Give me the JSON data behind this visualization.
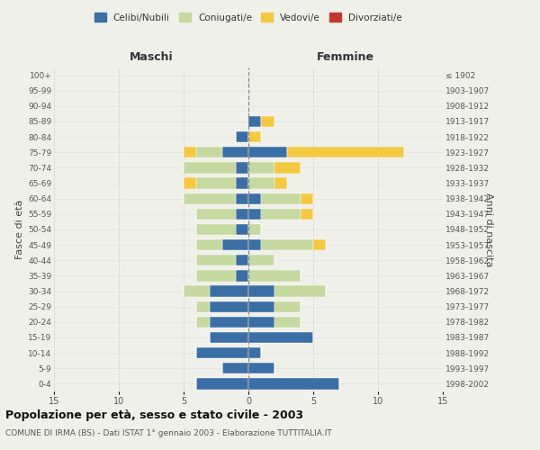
{
  "age_groups": [
    "0-4",
    "5-9",
    "10-14",
    "15-19",
    "20-24",
    "25-29",
    "30-34",
    "35-39",
    "40-44",
    "45-49",
    "50-54",
    "55-59",
    "60-64",
    "65-69",
    "70-74",
    "75-79",
    "80-84",
    "85-89",
    "90-94",
    "95-99",
    "100+"
  ],
  "birth_years": [
    "1998-2002",
    "1993-1997",
    "1988-1992",
    "1983-1987",
    "1978-1982",
    "1973-1977",
    "1968-1972",
    "1963-1967",
    "1958-1962",
    "1953-1957",
    "1948-1952",
    "1943-1947",
    "1938-1942",
    "1933-1937",
    "1928-1932",
    "1923-1927",
    "1918-1922",
    "1913-1917",
    "1908-1912",
    "1903-1907",
    "≤ 1902"
  ],
  "maschi": {
    "celibi": [
      4,
      2,
      4,
      3,
      3,
      3,
      3,
      1,
      1,
      2,
      1,
      1,
      1,
      1,
      1,
      2,
      1,
      0,
      0,
      0,
      0
    ],
    "coniugati": [
      0,
      0,
      0,
      0,
      1,
      1,
      2,
      3,
      3,
      2,
      3,
      3,
      4,
      3,
      4,
      2,
      0,
      0,
      0,
      0,
      0
    ],
    "vedovi": [
      0,
      0,
      0,
      0,
      0,
      0,
      0,
      0,
      0,
      0,
      0,
      0,
      0,
      1,
      0,
      1,
      0,
      0,
      0,
      0,
      0
    ],
    "divorziati": [
      0,
      0,
      0,
      0,
      0,
      0,
      0,
      0,
      0,
      0,
      0,
      0,
      0,
      0,
      0,
      0,
      0,
      0,
      0,
      0,
      0
    ]
  },
  "femmine": {
    "celibi": [
      7,
      2,
      1,
      5,
      2,
      2,
      2,
      0,
      0,
      1,
      0,
      1,
      1,
      0,
      0,
      3,
      0,
      1,
      0,
      0,
      0
    ],
    "coniugati": [
      0,
      0,
      0,
      0,
      2,
      2,
      4,
      4,
      2,
      4,
      1,
      3,
      3,
      2,
      2,
      0,
      0,
      0,
      0,
      0,
      0
    ],
    "vedovi": [
      0,
      0,
      0,
      0,
      0,
      0,
      0,
      0,
      0,
      1,
      0,
      1,
      1,
      1,
      2,
      9,
      1,
      1,
      0,
      0,
      0
    ],
    "divorziati": [
      0,
      0,
      0,
      0,
      0,
      0,
      0,
      0,
      0,
      0,
      0,
      0,
      0,
      0,
      0,
      0,
      0,
      0,
      0,
      0,
      0
    ]
  },
  "colors": {
    "celibi": "#3a6ea5",
    "coniugati": "#c5d9a0",
    "vedovi": "#f5c842",
    "divorziati": "#c0392b"
  },
  "xlim": 15,
  "title": "Popolazione per età, sesso e stato civile - 2003",
  "subtitle": "COMUNE DI IRMA (BS) - Dati ISTAT 1° gennaio 2003 - Elaborazione TUTTITALIA.IT",
  "ylabel_left": "Fasce di età",
  "ylabel_right": "Anni di nascita",
  "xlabel_maschi": "Maschi",
  "xlabel_femmine": "Femmine",
  "bg_color": "#f0f0eb",
  "legend_labels": [
    "Celibi/Nubili",
    "Coniugati/e",
    "Vedovi/e",
    "Divorziati/e"
  ]
}
